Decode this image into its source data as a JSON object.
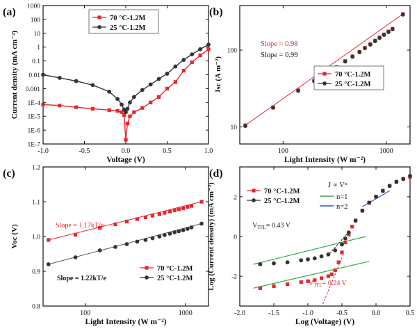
{
  "chart_data": [
    {
      "panel_label": "(a)",
      "type": "line",
      "xlabel": "Voltage (V)",
      "ylabel": "Current density (mA cm⁻²)",
      "scale_y": "log",
      "xlim": [
        -1.0,
        1.0
      ],
      "ylim": [
        1e-07,
        1000
      ],
      "xticks": [
        "-1.0",
        "-0.5",
        "0.0",
        "0.5",
        "1.0"
      ],
      "yticks": [
        "1E-7",
        "1E-6",
        "1E-5",
        "1E-4",
        "0.001",
        "0.01",
        "0.1",
        "1",
        "10",
        "100",
        "1000"
      ],
      "legend_position": "top-left",
      "series": [
        {
          "name": "70 °C-1.2M",
          "color": "#e8262d",
          "marker": "square",
          "x": [
            -1.0,
            -0.8,
            -0.6,
            -0.4,
            -0.2,
            -0.1,
            -0.05,
            -0.02,
            0.0,
            0.02,
            0.05,
            0.1,
            0.2,
            0.3,
            0.4,
            0.5,
            0.6,
            0.7,
            0.8,
            0.9,
            1.0
          ],
          "y": [
            7e-05,
            6e-05,
            4.5e-05,
            3.5e-05,
            2.8e-05,
            2.5e-05,
            2e-05,
            1.2e-05,
            2e-07,
            3e-06,
            1e-05,
            2e-05,
            4e-05,
            0.0001,
            0.00025,
            0.001,
            0.003,
            0.02,
            0.08,
            0.25,
            0.7
          ]
        },
        {
          "name": "25 °C-1.2M",
          "color": "#333333",
          "marker": "circle",
          "x": [
            -1.0,
            -0.8,
            -0.6,
            -0.4,
            -0.2,
            -0.1,
            -0.05,
            -0.02,
            0.0,
            0.02,
            0.05,
            0.1,
            0.2,
            0.3,
            0.4,
            0.5,
            0.6,
            0.7,
            0.8,
            0.9,
            1.0
          ],
          "y": [
            0.01,
            0.006,
            0.0035,
            0.0018,
            0.0006,
            0.00018,
            7e-05,
            3e-05,
            2e-05,
            3.5e-05,
            0.0001,
            0.00025,
            0.0008,
            0.002,
            0.005,
            0.012,
            0.04,
            0.12,
            0.3,
            0.7,
            1.5
          ]
        }
      ]
    },
    {
      "panel_label": "(b)",
      "type": "scatter",
      "xlabel": "Light Intensity (W m⁻²)",
      "ylabel": "Jsc (A m⁻²)",
      "scale_x": "log",
      "scale_y": "log",
      "xlim": [
        38,
        1700
      ],
      "ylim": [
        6,
        380
      ],
      "xticks": [
        "100",
        "1000"
      ],
      "yticks": [
        "10",
        "100"
      ],
      "legend_position": "bottom-right",
      "annotations": [
        "Slope = 0.98",
        "Slope = 0.99"
      ],
      "series": [
        {
          "name": "70 °C-1.2M",
          "color": "#e8262d",
          "marker": "square",
          "x": [
            43,
            80,
            140,
            200,
            260,
            330,
            400,
            470,
            550,
            620,
            700,
            780,
            860,
            950,
            1050,
            1150,
            1450
          ],
          "y": [
            10.5,
            18,
            30,
            40,
            50,
            60,
            72,
            83,
            95,
            107,
            120,
            133,
            146,
            160,
            175,
            190,
            295
          ]
        },
        {
          "name": "25 °C-1.2M",
          "color": "#333333",
          "marker": "circle",
          "x": [
            43,
            80,
            140,
            200,
            260,
            330,
            400,
            470,
            550,
            620,
            700,
            780,
            860,
            950,
            1050,
            1150,
            1450
          ],
          "y": [
            10.3,
            17.8,
            29.5,
            39.5,
            49.5,
            59.5,
            71,
            82,
            94,
            106,
            118,
            131,
            144,
            158,
            172,
            187,
            290
          ]
        }
      ]
    },
    {
      "panel_label": "(c)",
      "type": "scatter",
      "xlabel": "Light Intensity (W m⁻²)",
      "ylabel": "Voc (V)",
      "scale_x": "log",
      "xlim": [
        38,
        1700
      ],
      "ylim": [
        0.8,
        1.2
      ],
      "xticks": [
        "100",
        "1000"
      ],
      "yticks": [
        "0.8",
        "0.9",
        "1.0",
        "1.1",
        "1.2"
      ],
      "legend_position": "bottom-right",
      "annotations": [
        "Slope = 1.17kT/e",
        "Slope = 1.22kT/e"
      ],
      "series": [
        {
          "name": "70 °C-1.2M",
          "color": "#e8262d",
          "marker": "square",
          "x": [
            43,
            80,
            140,
            200,
            260,
            330,
            400,
            470,
            550,
            620,
            700,
            780,
            860,
            950,
            1050,
            1150,
            1450
          ],
          "y": [
            0.99,
            1.005,
            1.025,
            1.035,
            1.043,
            1.05,
            1.055,
            1.06,
            1.064,
            1.068,
            1.072,
            1.075,
            1.078,
            1.081,
            1.085,
            1.088,
            1.1
          ]
        },
        {
          "name": "25 °C-1.2M",
          "color": "#333333",
          "marker": "circle",
          "x": [
            43,
            80,
            140,
            200,
            260,
            330,
            400,
            470,
            550,
            620,
            700,
            780,
            860,
            950,
            1050,
            1150,
            1450
          ],
          "y": [
            0.92,
            0.94,
            0.96,
            0.97,
            0.978,
            0.985,
            0.99,
            0.995,
            1.0,
            1.004,
            1.008,
            1.012,
            1.015,
            1.018,
            1.022,
            1.026,
            1.037
          ]
        }
      ]
    },
    {
      "panel_label": "(d)",
      "type": "scatter",
      "xlabel": "Log (Voltage) (V)",
      "ylabel": "Log (Current density) (mA cm⁻²)",
      "xlim": [
        -2.0,
        0.5
      ],
      "ylim": [
        -3.5,
        3.5
      ],
      "xticks": [
        "-2.0",
        "-1.5",
        "-1.0",
        "-0.5",
        "0.0",
        "0.5"
      ],
      "yticks": [
        "-2",
        "0",
        "2"
      ],
      "legend_position": "top-left",
      "equation": "J ∝ Vⁿ",
      "fit_legend": [
        "n=1",
        "n=2"
      ],
      "annotations": [
        "V_TFL = 0.43 V",
        "V_TFL = 0.24 V"
      ],
      "series": [
        {
          "name": "70 °C-1.2M",
          "color": "#e8262d",
          "marker": "square",
          "x": [
            -1.7,
            -1.5,
            -1.3,
            -1.1,
            -1.0,
            -0.9,
            -0.8,
            -0.7,
            -0.65,
            -0.6,
            -0.55,
            -0.5,
            -0.45,
            -0.4,
            -0.35,
            -0.3,
            -0.2,
            -0.1,
            0.0,
            0.1,
            0.2,
            0.3,
            0.4,
            0.5
          ],
          "y": [
            -2.6,
            -2.5,
            -2.4,
            -2.3,
            -2.25,
            -2.2,
            -2.1,
            -2.0,
            -1.9,
            -1.7,
            -1.3,
            -0.8,
            -0.3,
            0.1,
            0.5,
            0.8,
            1.3,
            1.7,
            2.0,
            2.3,
            2.55,
            2.75,
            2.9,
            3.0
          ]
        },
        {
          "name": "25 °C-1.2M",
          "color": "#333333",
          "marker": "circle",
          "x": [
            -1.7,
            -1.5,
            -1.3,
            -1.1,
            -1.0,
            -0.9,
            -0.8,
            -0.7,
            -0.6,
            -0.5,
            -0.45,
            -0.4,
            -0.3,
            -0.2,
            -0.1,
            0.0,
            0.1,
            0.2,
            0.3,
            0.4,
            0.5
          ],
          "y": [
            -1.4,
            -1.35,
            -1.3,
            -1.2,
            -1.15,
            -1.1,
            -1.0,
            -0.9,
            -0.7,
            -0.4,
            -0.1,
            0.2,
            0.8,
            1.3,
            1.7,
            2.0,
            2.3,
            2.55,
            2.75,
            2.9,
            3.05
          ]
        }
      ],
      "fit_lines": [
        {
          "name": "n=1",
          "color": "#2ea84a",
          "segments": [
            [
              [
                -1.8,
                -1.4
              ],
              [
                -0.15,
                0.0
              ]
            ],
            [
              [
                -1.8,
                -2.6
              ],
              [
                -0.1,
                -1.25
              ]
            ]
          ]
        },
        {
          "name": "n=2",
          "color": "#2456c8",
          "segments": [
            [
              [
                -0.2,
                1.5
              ],
              [
                0.2,
                2.3
              ]
            ]
          ]
        }
      ]
    }
  ]
}
